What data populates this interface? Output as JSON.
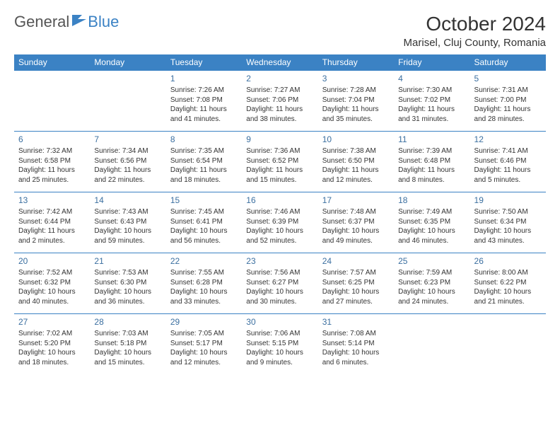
{
  "logo": {
    "general": "General",
    "blue": "Blue"
  },
  "title": "October 2024",
  "location": "Marisel, Cluj County, Romania",
  "colors": {
    "accent": "#3b82c4",
    "text": "#333333",
    "bg": "#ffffff"
  },
  "weekdays": [
    "Sunday",
    "Monday",
    "Tuesday",
    "Wednesday",
    "Thursday",
    "Friday",
    "Saturday"
  ],
  "weeks": [
    [
      null,
      null,
      {
        "n": "1",
        "sr": "Sunrise: 7:26 AM",
        "ss": "Sunset: 7:08 PM",
        "dl": "Daylight: 11 hours and 41 minutes."
      },
      {
        "n": "2",
        "sr": "Sunrise: 7:27 AM",
        "ss": "Sunset: 7:06 PM",
        "dl": "Daylight: 11 hours and 38 minutes."
      },
      {
        "n": "3",
        "sr": "Sunrise: 7:28 AM",
        "ss": "Sunset: 7:04 PM",
        "dl": "Daylight: 11 hours and 35 minutes."
      },
      {
        "n": "4",
        "sr": "Sunrise: 7:30 AM",
        "ss": "Sunset: 7:02 PM",
        "dl": "Daylight: 11 hours and 31 minutes."
      },
      {
        "n": "5",
        "sr": "Sunrise: 7:31 AM",
        "ss": "Sunset: 7:00 PM",
        "dl": "Daylight: 11 hours and 28 minutes."
      }
    ],
    [
      {
        "n": "6",
        "sr": "Sunrise: 7:32 AM",
        "ss": "Sunset: 6:58 PM",
        "dl": "Daylight: 11 hours and 25 minutes."
      },
      {
        "n": "7",
        "sr": "Sunrise: 7:34 AM",
        "ss": "Sunset: 6:56 PM",
        "dl": "Daylight: 11 hours and 22 minutes."
      },
      {
        "n": "8",
        "sr": "Sunrise: 7:35 AM",
        "ss": "Sunset: 6:54 PM",
        "dl": "Daylight: 11 hours and 18 minutes."
      },
      {
        "n": "9",
        "sr": "Sunrise: 7:36 AM",
        "ss": "Sunset: 6:52 PM",
        "dl": "Daylight: 11 hours and 15 minutes."
      },
      {
        "n": "10",
        "sr": "Sunrise: 7:38 AM",
        "ss": "Sunset: 6:50 PM",
        "dl": "Daylight: 11 hours and 12 minutes."
      },
      {
        "n": "11",
        "sr": "Sunrise: 7:39 AM",
        "ss": "Sunset: 6:48 PM",
        "dl": "Daylight: 11 hours and 8 minutes."
      },
      {
        "n": "12",
        "sr": "Sunrise: 7:41 AM",
        "ss": "Sunset: 6:46 PM",
        "dl": "Daylight: 11 hours and 5 minutes."
      }
    ],
    [
      {
        "n": "13",
        "sr": "Sunrise: 7:42 AM",
        "ss": "Sunset: 6:44 PM",
        "dl": "Daylight: 11 hours and 2 minutes."
      },
      {
        "n": "14",
        "sr": "Sunrise: 7:43 AM",
        "ss": "Sunset: 6:43 PM",
        "dl": "Daylight: 10 hours and 59 minutes."
      },
      {
        "n": "15",
        "sr": "Sunrise: 7:45 AM",
        "ss": "Sunset: 6:41 PM",
        "dl": "Daylight: 10 hours and 56 minutes."
      },
      {
        "n": "16",
        "sr": "Sunrise: 7:46 AM",
        "ss": "Sunset: 6:39 PM",
        "dl": "Daylight: 10 hours and 52 minutes."
      },
      {
        "n": "17",
        "sr": "Sunrise: 7:48 AM",
        "ss": "Sunset: 6:37 PM",
        "dl": "Daylight: 10 hours and 49 minutes."
      },
      {
        "n": "18",
        "sr": "Sunrise: 7:49 AM",
        "ss": "Sunset: 6:35 PM",
        "dl": "Daylight: 10 hours and 46 minutes."
      },
      {
        "n": "19",
        "sr": "Sunrise: 7:50 AM",
        "ss": "Sunset: 6:34 PM",
        "dl": "Daylight: 10 hours and 43 minutes."
      }
    ],
    [
      {
        "n": "20",
        "sr": "Sunrise: 7:52 AM",
        "ss": "Sunset: 6:32 PM",
        "dl": "Daylight: 10 hours and 40 minutes."
      },
      {
        "n": "21",
        "sr": "Sunrise: 7:53 AM",
        "ss": "Sunset: 6:30 PM",
        "dl": "Daylight: 10 hours and 36 minutes."
      },
      {
        "n": "22",
        "sr": "Sunrise: 7:55 AM",
        "ss": "Sunset: 6:28 PM",
        "dl": "Daylight: 10 hours and 33 minutes."
      },
      {
        "n": "23",
        "sr": "Sunrise: 7:56 AM",
        "ss": "Sunset: 6:27 PM",
        "dl": "Daylight: 10 hours and 30 minutes."
      },
      {
        "n": "24",
        "sr": "Sunrise: 7:57 AM",
        "ss": "Sunset: 6:25 PM",
        "dl": "Daylight: 10 hours and 27 minutes."
      },
      {
        "n": "25",
        "sr": "Sunrise: 7:59 AM",
        "ss": "Sunset: 6:23 PM",
        "dl": "Daylight: 10 hours and 24 minutes."
      },
      {
        "n": "26",
        "sr": "Sunrise: 8:00 AM",
        "ss": "Sunset: 6:22 PM",
        "dl": "Daylight: 10 hours and 21 minutes."
      }
    ],
    [
      {
        "n": "27",
        "sr": "Sunrise: 7:02 AM",
        "ss": "Sunset: 5:20 PM",
        "dl": "Daylight: 10 hours and 18 minutes."
      },
      {
        "n": "28",
        "sr": "Sunrise: 7:03 AM",
        "ss": "Sunset: 5:18 PM",
        "dl": "Daylight: 10 hours and 15 minutes."
      },
      {
        "n": "29",
        "sr": "Sunrise: 7:05 AM",
        "ss": "Sunset: 5:17 PM",
        "dl": "Daylight: 10 hours and 12 minutes."
      },
      {
        "n": "30",
        "sr": "Sunrise: 7:06 AM",
        "ss": "Sunset: 5:15 PM",
        "dl": "Daylight: 10 hours and 9 minutes."
      },
      {
        "n": "31",
        "sr": "Sunrise: 7:08 AM",
        "ss": "Sunset: 5:14 PM",
        "dl": "Daylight: 10 hours and 6 minutes."
      },
      null,
      null
    ]
  ]
}
